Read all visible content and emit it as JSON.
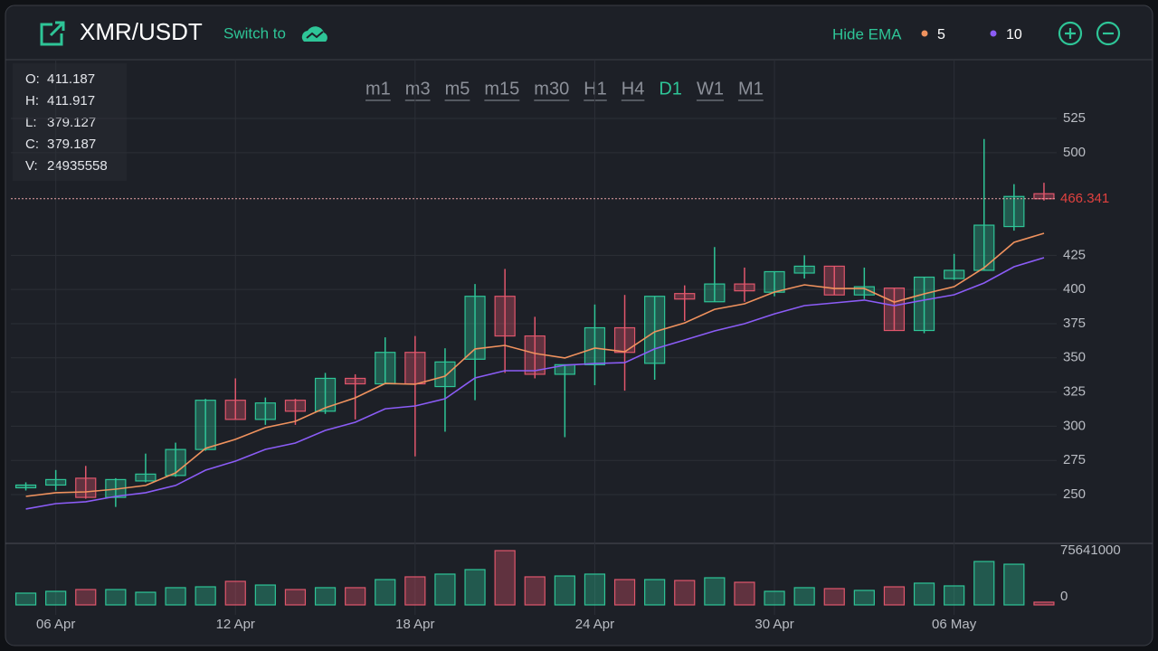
{
  "header": {
    "title": "XMR/USDT",
    "switch": "Switch to",
    "hide_ema": "Hide EMA"
  },
  "timeframes": [
    "m1",
    "m3",
    "m5",
    "m15",
    "m30",
    "H1",
    "H4",
    "D1",
    "W1",
    "M1"
  ],
  "active_timeframe": "D1",
  "ohlc_legend": [
    {
      "label": "O:",
      "value": 411.187
    },
    {
      "label": "H:",
      "value": 411.917
    },
    {
      "label": "L:",
      "value": 379.127
    },
    {
      "label": "C:",
      "value": 379.187
    },
    {
      "label": "V:",
      "value": 24935558
    }
  ],
  "chart_data": {
    "type": "candlestick",
    "categories": [
      null,
      "06 Apr",
      null,
      null,
      null,
      null,
      null,
      "12 Apr",
      null,
      null,
      null,
      null,
      null,
      "18 Apr",
      null,
      null,
      null,
      null,
      null,
      "24 Apr",
      null,
      null,
      null,
      null,
      null,
      "30 Apr",
      null,
      null,
      null,
      null,
      null,
      "06 May",
      null,
      null,
      null
    ],
    "open": [
      255,
      257,
      262,
      248,
      260,
      264,
      283,
      319,
      305,
      319,
      311,
      335,
      331,
      354,
      329,
      349,
      395,
      366,
      338,
      345,
      372,
      346,
      397,
      391,
      404,
      398,
      412,
      417,
      396,
      401,
      370,
      408,
      414,
      446,
      470
    ],
    "high": [
      259,
      268,
      271,
      262,
      280,
      288,
      320,
      335,
      321,
      320,
      339,
      338,
      365,
      366,
      357,
      404,
      415,
      380,
      345,
      389,
      396,
      395,
      403,
      431,
      416,
      413,
      425,
      417,
      416,
      401,
      409,
      426,
      510,
      477,
      478
    ],
    "low": [
      253,
      253,
      247,
      241,
      259,
      263,
      282,
      305,
      301,
      301,
      309,
      305,
      331,
      278,
      296,
      319,
      339,
      335,
      292,
      330,
      326,
      334,
      377,
      391,
      391,
      395,
      408,
      396,
      393,
      370,
      368,
      407,
      414,
      443,
      465
    ],
    "close": [
      257,
      261,
      248,
      261,
      265,
      283,
      319,
      305,
      317,
      311,
      335,
      331,
      354,
      331,
      347,
      395,
      366,
      338,
      345,
      372,
      354,
      395,
      393,
      404,
      399,
      413,
      417,
      396,
      402,
      370,
      409,
      414,
      447,
      468,
      466.341
    ],
    "volume": [
      16400000,
      18900000,
      21400000,
      21400000,
      17600000,
      24000000,
      25200000,
      32800000,
      27700000,
      21400000,
      24000000,
      24000000,
      35300000,
      39100000,
      42900000,
      49200000,
      75641000,
      39100000,
      40300000,
      42900000,
      35300000,
      35300000,
      34000000,
      37800000,
      31500000,
      18900000,
      24000000,
      22700000,
      20200000,
      25200000,
      30300000,
      26500000,
      60500000,
      56700000,
      3800000
    ],
    "up_color": "#2ec597",
    "down_color": "#e0566c",
    "ema": [
      {
        "name": "5",
        "color": "#f0925e",
        "values": [
          248.7,
          251.4,
          252.0,
          254.0,
          256.7,
          265.9,
          283.8,
          290.4,
          299.0,
          303.6,
          313.5,
          320.8,
          331.3,
          330.7,
          336.6,
          356.5,
          359.1,
          353.2,
          349.9,
          357.1,
          354.5,
          369.0,
          375.6,
          385.5,
          389.5,
          398.1,
          403.4,
          400.7,
          400.7,
          390.8,
          396.8,
          402.1,
          415.9,
          434.5,
          441.1
        ]
      },
      {
        "name": "10",
        "color": "#8b5cf6",
        "values": [
          239.5,
          243.4,
          244.8,
          248.7,
          251.4,
          256.7,
          267.9,
          274.5,
          283.1,
          287.7,
          297.0,
          302.9,
          312.8,
          314.8,
          320.1,
          335.3,
          340.6,
          340.6,
          344.6,
          345.9,
          346.5,
          356.5,
          363.1,
          369.7,
          375.0,
          382.2,
          388.2,
          390.2,
          392.2,
          388.2,
          392.2,
          396.1,
          404.7,
          416.6,
          423.2
        ]
      }
    ],
    "ylim": [
      215,
      568
    ],
    "yticks": [
      250,
      275,
      300,
      325,
      350,
      375,
      400,
      425,
      500,
      525
    ],
    "volume_lim": [
      0,
      75641000
    ],
    "volume_ticks": [
      0,
      75641000
    ],
    "last_price": 466.341,
    "grid": true
  }
}
